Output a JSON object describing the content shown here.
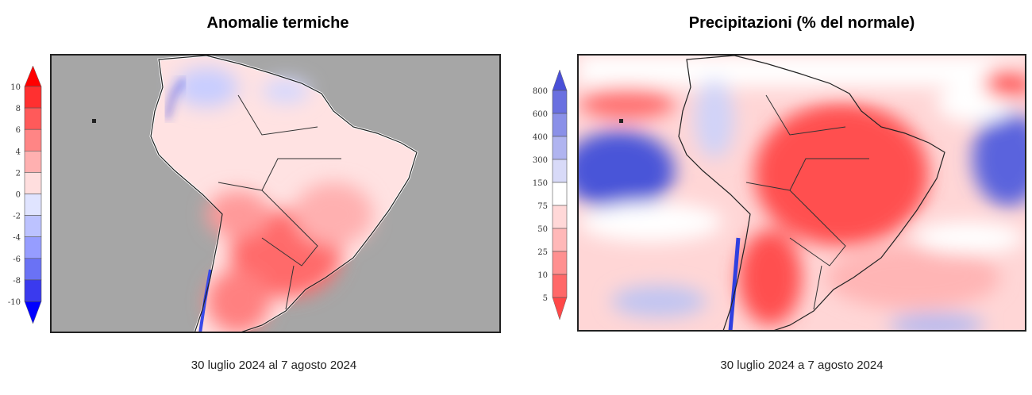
{
  "left_panel": {
    "title": "Anomalie termiche",
    "caption": "30 luglio 2024 al 7 agosto 2024",
    "colorbar": {
      "labels": [
        "10",
        "8",
        "6",
        "4",
        "2",
        "0",
        "-2",
        "-4",
        "-6",
        "-8",
        "-10"
      ],
      "colors": [
        "#ff3030",
        "#ff5a5a",
        "#ff8585",
        "#ffb0b0",
        "#ffdede",
        "#e0e4ff",
        "#bcc2ff",
        "#969dff",
        "#6a72f5",
        "#3a3aee"
      ],
      "arrow_top_color": "#ff0000",
      "arrow_bottom_color": "#0000ff"
    },
    "ocean_color": "#a6a6a6"
  },
  "right_panel": {
    "title": "Precipitazioni (% del normale)",
    "caption": "30 luglio 2024 a 7 agosto 2024",
    "colorbar": {
      "labels": [
        "800",
        "600",
        "400",
        "300",
        "150",
        "75",
        "50",
        "25",
        "10",
        "5"
      ],
      "colors": [
        "#6a70e0",
        "#8a90e8",
        "#b0b4f0",
        "#d8daf8",
        "#ffffff",
        "#ffd8d8",
        "#ffb8b8",
        "#ff9090",
        "#ff6868"
      ],
      "arrow_top_color": "#4a50d8",
      "arrow_bottom_color": "#ff4848"
    }
  }
}
